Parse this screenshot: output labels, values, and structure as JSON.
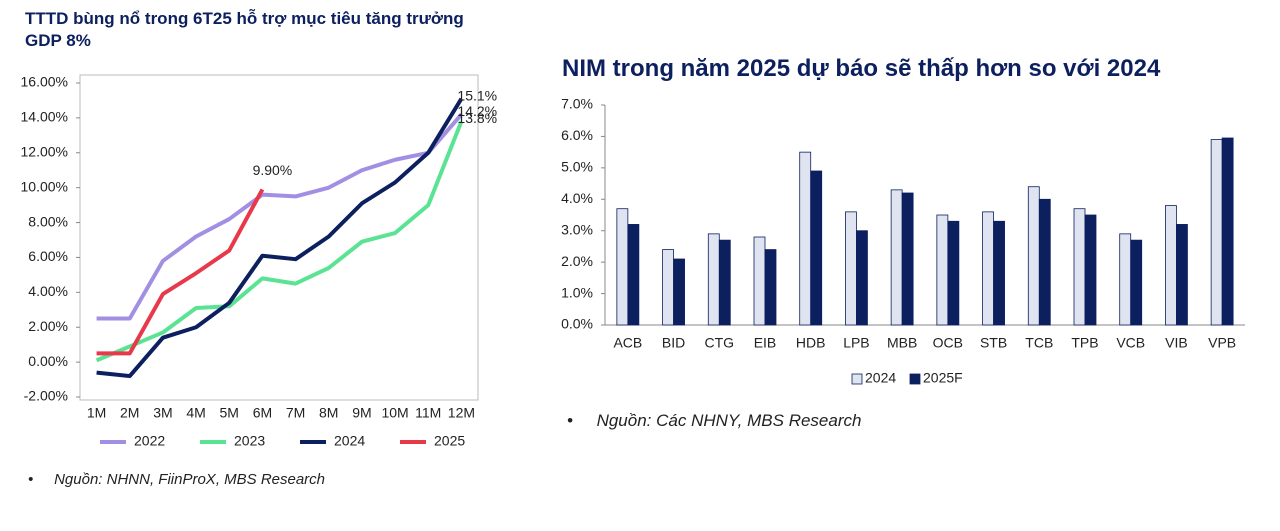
{
  "chart_data": [
    {
      "type": "line",
      "title": "TTTD bùng nổ trong 6T25 hỗ trợ mục tiêu tăng trưởng GDP 8%",
      "note": "Nguồn: NHNN, FiinProX, MBS Research",
      "categories": [
        "1M",
        "2M",
        "3M",
        "4M",
        "5M",
        "6M",
        "7M",
        "8M",
        "9M",
        "10M",
        "11M",
        "12M"
      ],
      "ylim": [
        -2,
        16
      ],
      "yticks": [
        {
          "value": -2,
          "label": "-2.00%"
        },
        {
          "value": 0,
          "label": "0.00%"
        },
        {
          "value": 2,
          "label": "2.00%"
        },
        {
          "value": 4,
          "label": "4.00%"
        },
        {
          "value": 6,
          "label": "6.00%"
        },
        {
          "value": 8,
          "label": "8.00%"
        },
        {
          "value": 10,
          "label": "10.00%"
        },
        {
          "value": 12,
          "label": "12.00%"
        },
        {
          "value": 14,
          "label": "14.00%"
        },
        {
          "value": 16,
          "label": "16.00%"
        }
      ],
      "series": [
        {
          "name": "2022",
          "color": "#a28fe3",
          "values": [
            2.5,
            2.5,
            5.8,
            7.2,
            8.2,
            9.6,
            9.5,
            10.0,
            11.0,
            11.6,
            12.0,
            14.2
          ],
          "value_labels": [
            null,
            null,
            null,
            null,
            null,
            null,
            null,
            null,
            null,
            null,
            null,
            "14.2%"
          ]
        },
        {
          "name": "2023",
          "color": "#5be394",
          "values": [
            0.1,
            0.9,
            1.7,
            3.1,
            3.2,
            4.8,
            4.5,
            5.4,
            6.9,
            7.4,
            9.0,
            13.8
          ],
          "value_labels": [
            null,
            null,
            null,
            null,
            null,
            null,
            null,
            null,
            null,
            null,
            null,
            "13.8%"
          ]
        },
        {
          "name": "2024",
          "color": "#0c1f5e",
          "values": [
            -0.6,
            -0.8,
            1.4,
            2.0,
            3.4,
            6.1,
            5.9,
            7.2,
            9.1,
            10.3,
            12.0,
            15.1
          ],
          "value_labels": [
            null,
            null,
            null,
            null,
            null,
            null,
            null,
            null,
            null,
            null,
            null,
            "15.1%"
          ]
        },
        {
          "name": "2025",
          "color": "#e8394b",
          "values": [
            0.5,
            0.5,
            3.9,
            5.1,
            6.4,
            9.9,
            null,
            null,
            null,
            null,
            null,
            null
          ],
          "value_labels": [
            null,
            null,
            null,
            null,
            null,
            "9.90%",
            null,
            null,
            null,
            null,
            null,
            null
          ]
        }
      ]
    },
    {
      "type": "bar",
      "title": "NIM trong năm 2025 dự báo sẽ thấp hơn so với 2024",
      "note": "Nguồn: Các NHNY, MBS Research",
      "categories": [
        "ACB",
        "BID",
        "CTG",
        "EIB",
        "HDB",
        "LPB",
        "MBB",
        "OCB",
        "STB",
        "TCB",
        "TPB",
        "VCB",
        "VIB",
        "VPB"
      ],
      "ylim": [
        0,
        7
      ],
      "yticks": [
        {
          "value": 0,
          "label": "0.0%"
        },
        {
          "value": 1,
          "label": "1.0%"
        },
        {
          "value": 2,
          "label": "2.0%"
        },
        {
          "value": 3,
          "label": "3.0%"
        },
        {
          "value": 4,
          "label": "4.0%"
        },
        {
          "value": 5,
          "label": "5.0%"
        },
        {
          "value": 6,
          "label": "6.0%"
        },
        {
          "value": 7,
          "label": "7.0%"
        }
      ],
      "series": [
        {
          "name": "2024",
          "color": "#dfe4f0",
          "values": [
            3.7,
            2.4,
            2.9,
            2.8,
            5.5,
            3.6,
            4.3,
            3.5,
            3.6,
            4.4,
            3.7,
            2.9,
            3.8,
            5.9
          ]
        },
        {
          "name": "2025F",
          "color": "#0c1f5e",
          "values": [
            3.2,
            2.1,
            2.7,
            2.4,
            4.9,
            3.0,
            4.2,
            3.3,
            3.3,
            4.0,
            3.5,
            2.7,
            3.2,
            5.95
          ]
        }
      ]
    }
  ]
}
